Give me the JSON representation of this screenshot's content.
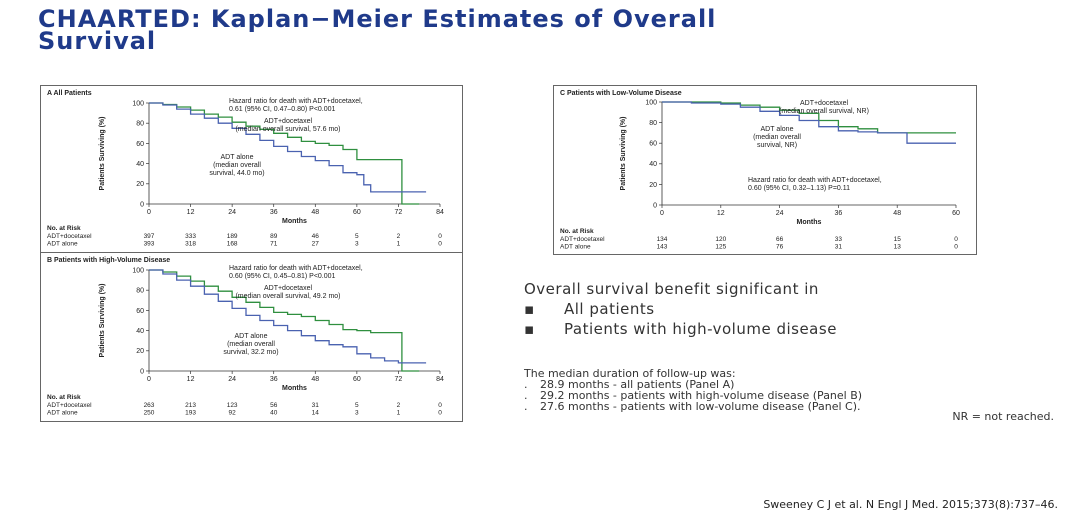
{
  "slide": {
    "title_line1": "CHAARTED: Kaplan−Meier Estimates of Overall",
    "title_line2": "Survival"
  },
  "summary": {
    "heading": "Overall survival benefit significant in",
    "bullet_mark": "▪",
    "bullets": [
      "All patients",
      "Patients with high-volume disease"
    ]
  },
  "follow_up": {
    "heading": "The median duration of follow-up was:",
    "mark": ".",
    "items": [
      "28.9 months - all patients (Panel A)",
      "29.2 months - patients with high-volume disease (Panel B)",
      "27.6 months - patients with low-volume disease (Panel C)."
    ]
  },
  "nr_note": "NR = not reached.",
  "citation": "Sweeney C J et al. N Engl J Med. 2015;373(8):737–46.",
  "colors": {
    "title": "#1f3a8a",
    "adt_docetaxel": "#2f8f3f",
    "adt_alone": "#4a62b0"
  },
  "chart_data": [
    {
      "type": "line",
      "panel_title": "A  All Patients",
      "xlabel": "Months",
      "ylabel": "Patients Surviving (%)",
      "xlim": [
        0,
        84
      ],
      "ylim": [
        0,
        100
      ],
      "xticks": [
        0,
        12,
        24,
        36,
        48,
        60,
        72,
        84
      ],
      "yticks": [
        0,
        20,
        40,
        60,
        80,
        100
      ],
      "annotations": {
        "hazard": [
          "Hazard ratio for death with ADT+docetaxel,",
          "0.61 (95% CI, 0.47–0.80) P<0.001"
        ],
        "series0": [
          "ADT+docetaxel",
          "(median overall survival, 57.6 mo)"
        ],
        "series1": [
          "ADT alone",
          "(median overall",
          "survival, 44.0 mo)"
        ]
      },
      "series": [
        {
          "name": "ADT+docetaxel",
          "color": "#2f8f3f",
          "x": [
            0,
            4,
            8,
            12,
            16,
            20,
            24,
            28,
            32,
            36,
            40,
            44,
            48,
            52,
            56,
            60,
            64,
            68,
            72,
            73,
            78
          ],
          "y": [
            100,
            98.5,
            96,
            93,
            89,
            86,
            81,
            77,
            74,
            70,
            66,
            62,
            60,
            58,
            54,
            44,
            44,
            44,
            44,
            0,
            0
          ]
        },
        {
          "name": "ADT alone",
          "color": "#4a62b0",
          "x": [
            0,
            4,
            8,
            12,
            16,
            20,
            24,
            28,
            32,
            36,
            40,
            44,
            48,
            52,
            56,
            60,
            62,
            64,
            68,
            72,
            74,
            80
          ],
          "y": [
            100,
            98,
            94,
            89,
            85,
            80,
            75,
            69,
            63,
            57,
            52,
            47,
            43,
            38,
            31,
            29,
            19,
            12,
            12,
            12,
            12,
            12
          ]
        }
      ],
      "risk_table": {
        "heading": "No. at Risk",
        "rows": [
          {
            "label": "ADT+docetaxel",
            "values": [
              "397",
              "333",
              "189",
              "89",
              "46",
              "5",
              "2",
              "0"
            ]
          },
          {
            "label": "ADT alone",
            "values": [
              "393",
              "318",
              "168",
              "71",
              "27",
              "3",
              "1",
              "0"
            ]
          }
        ]
      }
    },
    {
      "type": "line",
      "panel_title": "B  Patients with High-Volume Disease",
      "xlabel": "Months",
      "ylabel": "Patients Surviving (%)",
      "xlim": [
        0,
        84
      ],
      "ylim": [
        0,
        100
      ],
      "xticks": [
        0,
        12,
        24,
        36,
        48,
        60,
        72,
        84
      ],
      "yticks": [
        0,
        20,
        40,
        60,
        80,
        100
      ],
      "annotations": {
        "hazard": [
          "Hazard ratio for death with ADT+docetaxel,",
          "0.60 (95% CI, 0.45–0.81) P<0.001"
        ],
        "series0": [
          "ADT+docetaxel",
          "(median overall survival, 49.2 mo)"
        ],
        "series1": [
          "ADT alone",
          "(median overall",
          "survival, 32.2 mo)"
        ]
      },
      "series": [
        {
          "name": "ADT+docetaxel",
          "color": "#2f8f3f",
          "x": [
            0,
            4,
            8,
            12,
            16,
            20,
            24,
            28,
            32,
            36,
            40,
            44,
            48,
            52,
            56,
            60,
            64,
            68,
            72,
            73,
            78
          ],
          "y": [
            100,
            98,
            94,
            89,
            84,
            79,
            73,
            68,
            63,
            58,
            56,
            54,
            50,
            46,
            41,
            40,
            38,
            38,
            38,
            0,
            0
          ]
        },
        {
          "name": "ADT alone",
          "color": "#4a62b0",
          "x": [
            0,
            4,
            8,
            12,
            16,
            20,
            24,
            28,
            32,
            36,
            40,
            44,
            48,
            52,
            56,
            60,
            64,
            68,
            72,
            74,
            80
          ],
          "y": [
            100,
            96,
            90,
            84,
            76,
            69,
            62,
            55,
            50,
            45,
            40,
            35,
            30,
            26,
            24,
            17,
            13,
            10,
            8,
            8,
            8
          ]
        }
      ],
      "risk_table": {
        "heading": "No. at Risk",
        "rows": [
          {
            "label": "ADT+docetaxel",
            "values": [
              "263",
              "213",
              "123",
              "56",
              "31",
              "5",
              "2",
              "0"
            ]
          },
          {
            "label": "ADT alone",
            "values": [
              "250",
              "193",
              "92",
              "40",
              "14",
              "3",
              "1",
              "0"
            ]
          }
        ]
      }
    },
    {
      "type": "line",
      "panel_title": "C  Patients with Low-Volume Disease",
      "xlabel": "Months",
      "ylabel": "Patients Surviving (%)",
      "xlim": [
        0,
        60
      ],
      "ylim": [
        0,
        100
      ],
      "xticks": [
        0,
        12,
        24,
        36,
        48,
        60
      ],
      "yticks": [
        0,
        20,
        40,
        60,
        80,
        100
      ],
      "annotations": {
        "hazard": [
          "Hazard ratio for death with ADT+docetaxel,",
          "0.60 (95% CI, 0.32–1.13) P=0.11"
        ],
        "series0": [
          "ADT+docetaxel",
          "(median overall survival, NR)"
        ],
        "series1": [
          "ADT alone",
          "(median overall",
          "survival, NR)"
        ]
      },
      "series": [
        {
          "name": "ADT+docetaxel",
          "color": "#2f8f3f",
          "x": [
            0,
            6,
            12,
            16,
            20,
            24,
            28,
            32,
            36,
            40,
            44,
            48,
            52,
            56,
            60
          ],
          "y": [
            100,
            100,
            99,
            97,
            95,
            92,
            89,
            82,
            76,
            74,
            70,
            70,
            70,
            70,
            70
          ]
        },
        {
          "name": "ADT alone",
          "color": "#4a62b0",
          "x": [
            0,
            6,
            12,
            16,
            20,
            24,
            28,
            32,
            36,
            40,
            44,
            48,
            50,
            54,
            60
          ],
          "y": [
            100,
            99,
            98,
            95,
            91,
            87,
            82,
            76,
            72,
            71,
            70,
            70,
            60,
            60,
            60
          ]
        }
      ],
      "risk_table": {
        "heading": "No. at Risk",
        "rows": [
          {
            "label": "ADT+docetaxel",
            "values": [
              "134",
              "120",
              "66",
              "33",
              "15",
              "0"
            ]
          },
          {
            "label": "ADT alone",
            "values": [
              "143",
              "125",
              "76",
              "31",
              "13",
              "0"
            ]
          }
        ]
      }
    }
  ]
}
